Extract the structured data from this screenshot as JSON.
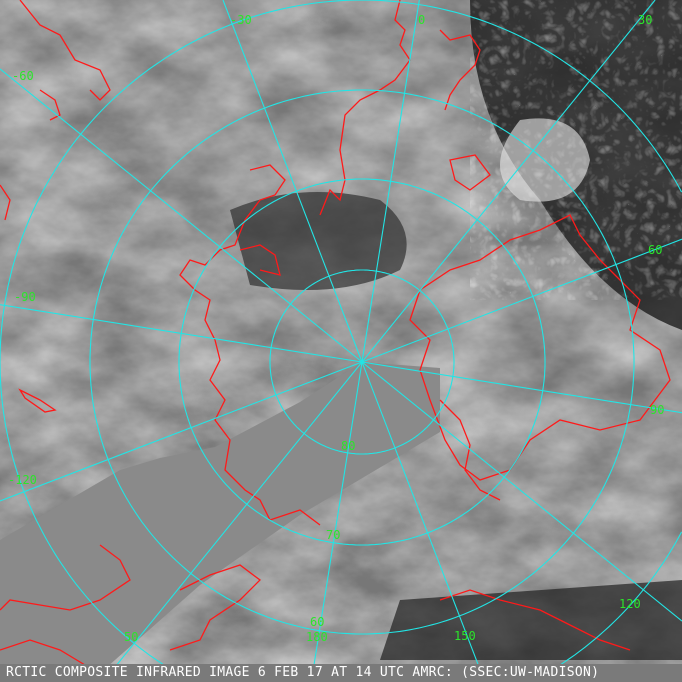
{
  "caption": "RCTIC COMPOSITE INFRARED IMAGE 6 FEB 17 AT 14 UTC AMRC: (SSEC:UW-MADISON)",
  "colors": {
    "graticule": "#22e5e5",
    "coastline": "#ff1a1a",
    "labels": "#2be52b",
    "no_data": "#8a8a8a"
  },
  "longitude_labels": [
    "-60",
    "-30",
    "0",
    "30",
    "60",
    "90",
    "120",
    "150",
    "180",
    "-120",
    "-90"
  ],
  "latitude_labels": [
    "80",
    "70",
    "60",
    "50"
  ]
}
